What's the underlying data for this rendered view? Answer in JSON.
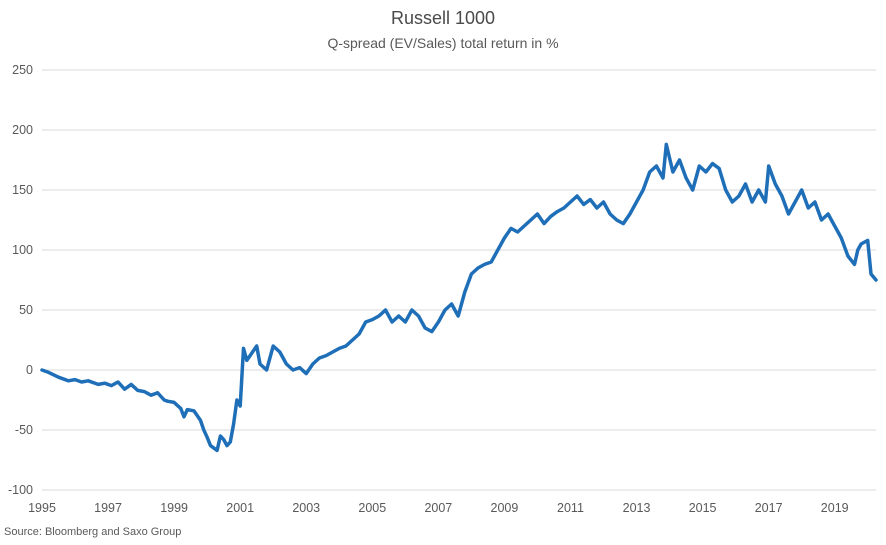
{
  "chart_data": {
    "type": "line",
    "title": "Russell 1000",
    "subtitle": "Q-spread (EV/Sales) total return in %",
    "source": "Source: Bloomberg and Saxo Group",
    "xlabel": "",
    "ylabel": "",
    "xlim": [
      1995.0,
      2020.25
    ],
    "ylim": [
      -100,
      250
    ],
    "grid": true,
    "legend": "none",
    "y_ticks": [
      "250",
      "200",
      "150",
      "100",
      "50",
      "0",
      "-50",
      "-100"
    ],
    "y_tick_values": [
      250,
      200,
      150,
      100,
      50,
      0,
      -50,
      -100
    ],
    "x_ticks": [
      "1995",
      "1997",
      "1999",
      "2001",
      "2003",
      "2005",
      "2007",
      "2009",
      "2011",
      "2013",
      "2015",
      "2017",
      "2019"
    ],
    "x_tick_values": [
      1995,
      1997,
      1999,
      2001,
      2003,
      2005,
      2007,
      2009,
      2011,
      2013,
      2015,
      2017,
      2019
    ],
    "line_color": "#1f6fb8",
    "series": [
      {
        "x": [
          1995.0,
          1995.2,
          1995.5,
          1995.8,
          1996.0,
          1996.2,
          1996.4,
          1996.7,
          1996.9,
          1997.1,
          1997.3,
          1997.5,
          1997.7,
          1997.9,
          1998.1,
          1998.3,
          1998.5,
          1998.7,
          1998.8,
          1999.0,
          1999.2,
          1999.3,
          1999.4,
          1999.6,
          1999.8,
          1999.9,
          2000.0,
          2000.1,
          2000.3,
          2000.4,
          2000.5,
          2000.6,
          2000.7,
          2000.8,
          2000.9,
          2001.0,
          2001.1,
          2001.2,
          2001.3,
          2001.5,
          2001.6,
          2001.8,
          2002.0,
          2002.2,
          2002.4,
          2002.6,
          2002.8,
          2003.0,
          2003.2,
          2003.4,
          2003.6,
          2003.8,
          2004.0,
          2004.2,
          2004.4,
          2004.6,
          2004.8,
          2005.0,
          2005.2,
          2005.4,
          2005.6,
          2005.8,
          2006.0,
          2006.2,
          2006.4,
          2006.6,
          2006.8,
          2007.0,
          2007.2,
          2007.4,
          2007.6,
          2007.8,
          2008.0,
          2008.2,
          2008.4,
          2008.6,
          2008.8,
          2009.0,
          2009.2,
          2009.4,
          2009.6,
          2009.8,
          2010.0,
          2010.2,
          2010.4,
          2010.6,
          2010.8,
          2011.0,
          2011.2,
          2011.4,
          2011.6,
          2011.8,
          2012.0,
          2012.2,
          2012.4,
          2012.6,
          2012.8,
          2013.0,
          2013.2,
          2013.4,
          2013.6,
          2013.8,
          2013.9,
          2014.1,
          2014.3,
          2014.5,
          2014.7,
          2014.9,
          2015.1,
          2015.3,
          2015.5,
          2015.7,
          2015.9,
          2016.1,
          2016.3,
          2016.5,
          2016.7,
          2016.9,
          2017.0,
          2017.2,
          2017.4,
          2017.6,
          2017.8,
          2018.0,
          2018.2,
          2018.4,
          2018.6,
          2018.8,
          2019.0,
          2019.2,
          2019.4,
          2019.6,
          2019.7,
          2019.8,
          2020.0,
          2020.1,
          2020.25
        ],
        "values": [
          0,
          -2,
          -6,
          -9,
          -8,
          -10,
          -9,
          -12,
          -11,
          -13,
          -10,
          -16,
          -12,
          -17,
          -18,
          -21,
          -19,
          -25,
          -26,
          -27,
          -32,
          -39,
          -33,
          -34,
          -42,
          -50,
          -56,
          -63,
          -67,
          -55,
          -58,
          -63,
          -60,
          -45,
          -25,
          -30,
          18,
          8,
          12,
          20,
          5,
          0,
          20,
          15,
          5,
          0,
          2,
          -3,
          5,
          10,
          12,
          15,
          18,
          20,
          25,
          30,
          40,
          42,
          45,
          50,
          40,
          45,
          40,
          50,
          45,
          35,
          32,
          40,
          50,
          55,
          45,
          65,
          80,
          85,
          88,
          90,
          100,
          110,
          118,
          115,
          120,
          125,
          130,
          122,
          128,
          132,
          135,
          140,
          145,
          138,
          142,
          135,
          140,
          130,
          125,
          122,
          130,
          140,
          150,
          165,
          170,
          160,
          188,
          165,
          175,
          160,
          150,
          170,
          165,
          172,
          168,
          150,
          140,
          145,
          155,
          140,
          150,
          140,
          170,
          155,
          145,
          130,
          140,
          150,
          135,
          140,
          125,
          130,
          120,
          110,
          95,
          88,
          100,
          105,
          108,
          80,
          75
        ]
      }
    ]
  }
}
